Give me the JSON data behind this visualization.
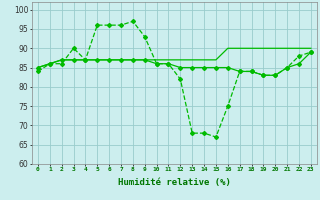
{
  "x": [
    0,
    1,
    2,
    3,
    4,
    5,
    6,
    7,
    8,
    9,
    10,
    11,
    12,
    13,
    14,
    15,
    16,
    17,
    18,
    19,
    20,
    21,
    22,
    23
  ],
  "line1": [
    84,
    86,
    86,
    90,
    87,
    96,
    96,
    96,
    97,
    93,
    86,
    86,
    82,
    68,
    68,
    67,
    75,
    84,
    84,
    83,
    83,
    85,
    88,
    89
  ],
  "line2": [
    85,
    86,
    87,
    87,
    87,
    87,
    87,
    87,
    87,
    87,
    86,
    86,
    85,
    85,
    85,
    85,
    85,
    84,
    84,
    83,
    83,
    85,
    86,
    89
  ],
  "line3": [
    85,
    86,
    87,
    87,
    87,
    87,
    87,
    87,
    87,
    87,
    87,
    87,
    87,
    87,
    87,
    87,
    90,
    90,
    90,
    90,
    90,
    90,
    90,
    90
  ],
  "line_color": "#00bb00",
  "bg_color": "#cceeee",
  "grid_color": "#99cccc",
  "xlabel": "Humidité relative (%)",
  "ylim": [
    60,
    102
  ],
  "xlim": [
    -0.5,
    23.5
  ],
  "yticks": [
    60,
    65,
    70,
    75,
    80,
    85,
    90,
    95,
    100
  ],
  "xticks": [
    0,
    1,
    2,
    3,
    4,
    5,
    6,
    7,
    8,
    9,
    10,
    11,
    12,
    13,
    14,
    15,
    16,
    17,
    18,
    19,
    20,
    21,
    22,
    23
  ]
}
